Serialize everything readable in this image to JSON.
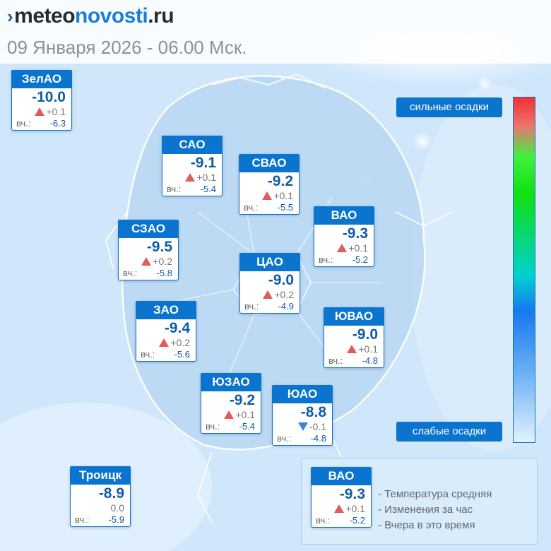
{
  "logo": {
    "brand_prefix": "meteo",
    "brand_mid": "novosti",
    "brand_suffix": ".ru"
  },
  "date_line": "09 Января 2026 - 06.00 Мск.",
  "districts": [
    {
      "name": "ЗелАО",
      "temp": "-10.0",
      "change": "+0.1",
      "trend": "up",
      "yesterday_label": "вч.:",
      "yesterday": "-6.3"
    },
    {
      "name": "САО",
      "temp": "-9.1",
      "change": "+0.1",
      "trend": "up",
      "yesterday_label": "вч.:",
      "yesterday": "-5.4"
    },
    {
      "name": "СВАО",
      "temp": "-9.2",
      "change": "+0.1",
      "trend": "up",
      "yesterday_label": "вч.:",
      "yesterday": "-5.5"
    },
    {
      "name": "ВАО",
      "temp": "-9.3",
      "change": "+0.1",
      "trend": "up",
      "yesterday_label": "вч.:",
      "yesterday": "-5.2"
    },
    {
      "name": "СЗАО",
      "temp": "-9.5",
      "change": "+0.2",
      "trend": "up",
      "yesterday_label": "вч.:",
      "yesterday": "-5.8"
    },
    {
      "name": "ЦАО",
      "temp": "-9.0",
      "change": "+0.2",
      "trend": "up",
      "yesterday_label": "вч.:",
      "yesterday": "-4.9"
    },
    {
      "name": "ЗАО",
      "temp": "-9.4",
      "change": "+0.2",
      "trend": "up",
      "yesterday_label": "вч.:",
      "yesterday": "-5.6"
    },
    {
      "name": "ЮВАО",
      "temp": "-9.0",
      "change": "+0.1",
      "trend": "up",
      "yesterday_label": "вч.:",
      "yesterday": "-4.8"
    },
    {
      "name": "ЮЗАО",
      "temp": "-9.2",
      "change": "+0.1",
      "trend": "up",
      "yesterday_label": "вч.:",
      "yesterday": "-5.4"
    },
    {
      "name": "ЮАО",
      "temp": "-8.8",
      "change": "-0.1",
      "trend": "down",
      "yesterday_label": "вч.:",
      "yesterday": "-4.8"
    },
    {
      "name": "Троицк",
      "temp": "-8.9",
      "change": "0.0",
      "trend": "none",
      "yesterday_label": "вч.:",
      "yesterday": "-5.9"
    }
  ],
  "precipitation_scale": {
    "top_label": "сильные осадки",
    "bottom_label": "слабые осадки"
  },
  "legend": {
    "example": {
      "name": "ВАО",
      "temp": "-9.3",
      "change": "+0.1",
      "trend": "up",
      "yesterday_label": "вч.:",
      "yesterday": "-5.2"
    },
    "items": [
      "- Температура средняя",
      "- Изменения за час",
      "- Вчера в это время"
    ]
  },
  "colors": {
    "card_header": "#0a74cf",
    "temp_text": "#115ca7",
    "trend_up": "#e35a5d",
    "trend_down": "#3a86d8"
  }
}
